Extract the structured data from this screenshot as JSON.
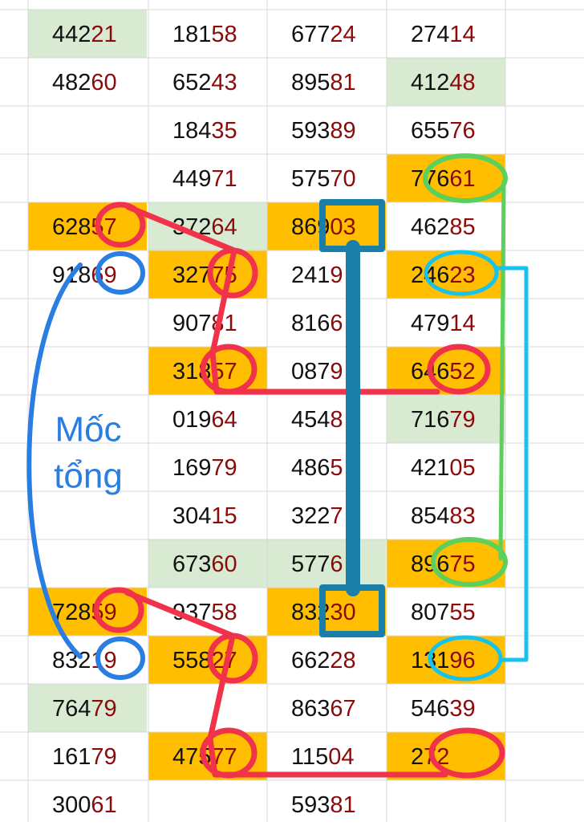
{
  "label": [
    "Mốc",
    "tổng"
  ],
  "columns": [
    {
      "cells": [
        {
          "head": "442",
          "tail": "21",
          "bg": "#d9ead3"
        },
        {
          "head": "482",
          "tail": "60"
        },
        null,
        null,
        {
          "head": "628",
          "tail": "57",
          "bg": "#ffbf00"
        },
        {
          "head": "918",
          "tail": "69"
        },
        null,
        null,
        null,
        null,
        null,
        null,
        {
          "head": "728",
          "tail": "59",
          "bg": "#ffbf00"
        },
        {
          "head": "832",
          "tail": "19"
        },
        {
          "head": "764",
          "tail": "79",
          "bg": "#d9ead3"
        },
        {
          "head": "161",
          "tail": "79"
        },
        {
          "head": "300",
          "tail": "61"
        }
      ]
    },
    {
      "cells": [
        {
          "head": "181",
          "tail": "58"
        },
        {
          "head": "652",
          "tail": "43"
        },
        {
          "head": "184",
          "tail": "35"
        },
        {
          "head": "449",
          "tail": "71"
        },
        {
          "head": "372",
          "tail": "64",
          "bg": "#d9ead3"
        },
        {
          "head": "327",
          "tail": "75",
          "bg": "#ffbf00"
        },
        {
          "head": "907",
          "tail": "81"
        },
        {
          "head": "318",
          "tail": "57",
          "bg": "#ffbf00"
        },
        {
          "head": "019",
          "tail": "64"
        },
        {
          "head": "169",
          "tail": "79"
        },
        {
          "head": "304",
          "tail": "15"
        },
        {
          "head": "673",
          "tail": "60",
          "bg": "#d9ead3"
        },
        {
          "head": "937",
          "tail": "58"
        },
        {
          "head": "558",
          "tail": "27",
          "bg": "#ffbf00"
        },
        null,
        {
          "head": "475",
          "tail": "77",
          "bg": "#ffbf00"
        },
        null
      ]
    },
    {
      "cells": [
        {
          "head": "677",
          "tail": "24"
        },
        {
          "head": "895",
          "tail": "81"
        },
        {
          "head": "593",
          "tail": "89"
        },
        {
          "head": "575",
          "tail": "70"
        },
        {
          "head": "869",
          "tail": "03",
          "bg": "#ffbf00"
        },
        {
          "head": "241",
          "tail": "9"
        },
        {
          "head": "816",
          "tail": "6"
        },
        {
          "head": "087",
          "tail": "9"
        },
        {
          "head": "454",
          "tail": "8"
        },
        {
          "head": "486",
          "tail": "5"
        },
        {
          "head": "322",
          "tail": "7"
        },
        {
          "head": "577",
          "tail": "6",
          "bg": "#d9ead3"
        },
        {
          "head": "832",
          "tail": "30",
          "bg": "#ffbf00"
        },
        {
          "head": "662",
          "tail": "28"
        },
        {
          "head": "863",
          "tail": "67"
        },
        {
          "head": "115",
          "tail": "04"
        },
        {
          "head": "593",
          "tail": "81"
        }
      ]
    },
    {
      "cells": [
        {
          "head": "274",
          "tail": "14"
        },
        {
          "head": "412",
          "tail": "48",
          "bg": "#d9ead3"
        },
        {
          "head": "655",
          "tail": "76"
        },
        {
          "head": "776",
          "tail": "61",
          "bg": "#ffbf00"
        },
        {
          "head": "462",
          "tail": "85"
        },
        {
          "head": "246",
          "tail": "23",
          "bg": "#ffbf00"
        },
        {
          "head": "479",
          "tail": "14"
        },
        {
          "head": "646",
          "tail": "52",
          "bg": "#ffbf00"
        },
        {
          "head": "716",
          "tail": "79",
          "bg": "#d9ead3"
        },
        {
          "head": "421",
          "tail": "05"
        },
        {
          "head": "854",
          "tail": "83"
        },
        {
          "head": "896",
          "tail": "75",
          "bg": "#ffbf00"
        },
        {
          "head": "807",
          "tail": "55"
        },
        {
          "head": "131",
          "tail": "96",
          "bg": "#ffbf00"
        },
        {
          "head": "546",
          "tail": "39"
        },
        {
          "head": "2",
          "tail": "72",
          "bg": "#ffbf00"
        },
        null
      ]
    }
  ]
}
